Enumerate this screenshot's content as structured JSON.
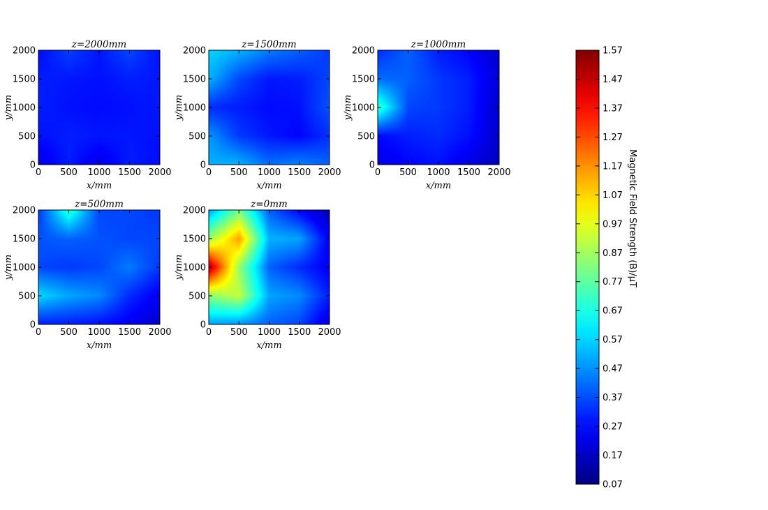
{
  "chart_data": [
    {
      "type": "heatmap",
      "title": "z=2000mm",
      "xlabel": "x/mm",
      "ylabel": "y/mm",
      "x": [
        0,
        500,
        1000,
        1500,
        2000
      ],
      "y": [
        0,
        500,
        1000,
        1500,
        2000
      ],
      "xticks": [
        "0",
        "500",
        "1000",
        "1500",
        "2000"
      ],
      "yticks": [
        "0",
        "500",
        "1000",
        "1500",
        "2000"
      ],
      "values": [
        [
          0.22,
          0.3,
          0.22,
          0.3,
          0.27
        ],
        [
          0.28,
          0.3,
          0.29,
          0.29,
          0.28
        ],
        [
          0.3,
          0.28,
          0.27,
          0.28,
          0.29
        ],
        [
          0.3,
          0.29,
          0.28,
          0.3,
          0.29
        ],
        [
          0.27,
          0.35,
          0.29,
          0.36,
          0.28
        ]
      ]
    },
    {
      "type": "heatmap",
      "title": "z=1500mm",
      "xlabel": "x/mm",
      "ylabel": "y/mm",
      "x": [
        0,
        500,
        1000,
        1500,
        2000
      ],
      "y": [
        0,
        500,
        1000,
        1500,
        2000
      ],
      "xticks": [
        "0",
        "500",
        "1000",
        "1500",
        "2000"
      ],
      "yticks": [
        "0",
        "500",
        "1000",
        "1500",
        "2000"
      ],
      "values": [
        [
          0.52,
          0.52,
          0.42,
          0.45,
          0.4
        ],
        [
          0.48,
          0.34,
          0.29,
          0.26,
          0.33
        ],
        [
          0.32,
          0.3,
          0.27,
          0.28,
          0.38
        ],
        [
          0.52,
          0.36,
          0.29,
          0.3,
          0.36
        ],
        [
          0.57,
          0.52,
          0.44,
          0.4,
          0.34
        ]
      ]
    },
    {
      "type": "heatmap",
      "title": "z=1000mm",
      "xlabel": "x/mm",
      "ylabel": "y/mm",
      "x": [
        0,
        500,
        1000,
        1500,
        2000
      ],
      "y": [
        0,
        500,
        1000,
        1500,
        2000
      ],
      "xticks": [
        "0",
        "500",
        "1000",
        "1500",
        "2000"
      ],
      "yticks": [
        "0",
        "500",
        "1000",
        "1500",
        "2000"
      ],
      "values": [
        [
          0.22,
          0.26,
          0.28,
          0.22,
          0.16
        ],
        [
          0.27,
          0.3,
          0.32,
          0.28,
          0.18
        ],
        [
          0.72,
          0.36,
          0.34,
          0.3,
          0.18
        ],
        [
          0.42,
          0.4,
          0.34,
          0.3,
          0.2
        ],
        [
          0.32,
          0.4,
          0.3,
          0.26,
          0.18
        ]
      ]
    },
    {
      "type": "heatmap",
      "title": "z=500mm",
      "xlabel": "x/mm",
      "ylabel": "y/mm",
      "x": [
        0,
        500,
        1000,
        1500,
        2000
      ],
      "y": [
        0,
        500,
        1000,
        1500,
        2000
      ],
      "xticks": [
        "0",
        "500",
        "1000",
        "1500",
        "2000"
      ],
      "yticks": [
        "0",
        "500",
        "1000",
        "1500",
        "2000"
      ],
      "values": [
        [
          0.3,
          0.3,
          0.28,
          0.24,
          0.18
        ],
        [
          0.58,
          0.5,
          0.46,
          0.32,
          0.24
        ],
        [
          0.36,
          0.34,
          0.36,
          0.44,
          0.34
        ],
        [
          0.38,
          0.4,
          0.38,
          0.36,
          0.36
        ],
        [
          0.34,
          0.7,
          0.36,
          0.36,
          0.34
        ]
      ]
    },
    {
      "type": "heatmap",
      "title": "z=0mm",
      "xlabel": "x/mm",
      "ylabel": "y/mm",
      "x": [
        0,
        500,
        1000,
        1500,
        2000
      ],
      "y": [
        0,
        500,
        1000,
        1500,
        2000
      ],
      "xticks": [
        "0",
        "500",
        "1000",
        "1500",
        "2000"
      ],
      "yticks": [
        "0",
        "500",
        "1000",
        "1500",
        "2000"
      ],
      "values": [
        [
          0.5,
          0.48,
          0.4,
          0.36,
          0.2
        ],
        [
          0.84,
          0.92,
          0.5,
          0.46,
          0.3
        ],
        [
          1.5,
          0.85,
          0.4,
          0.32,
          0.24
        ],
        [
          0.86,
          1.15,
          0.52,
          0.5,
          0.24
        ],
        [
          0.5,
          0.8,
          0.4,
          0.26,
          0.15
        ]
      ]
    }
  ],
  "colorbar": {
    "label": "Magnetic Field Strength (B)/μT",
    "min": 0.07,
    "max": 1.57,
    "colormap": "jet",
    "ticks": [
      "1.57",
      "1.47",
      "1.37",
      "1.27",
      "1.17",
      "1.07",
      "0.97",
      "0.87",
      "0.77",
      "0.67",
      "0.57",
      "0.47",
      "0.37",
      "0.27",
      "0.17",
      "0.07"
    ]
  }
}
